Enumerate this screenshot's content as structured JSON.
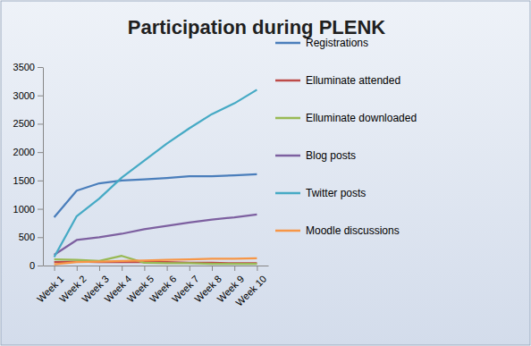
{
  "chart_data": {
    "type": "line",
    "title": "Participation during PLENK",
    "categories": [
      "Week 1",
      "Week 2",
      "Week 3",
      "Week 4",
      "Week 5",
      "Week 6",
      "Week 7",
      "Week 8",
      "Week 9",
      "Week 10"
    ],
    "ylim": [
      0,
      3500
    ],
    "yticks": [
      0,
      500,
      1000,
      1500,
      2000,
      2500,
      3000,
      3500
    ],
    "grid": false,
    "legend": "right",
    "series": [
      {
        "name": "Registrations",
        "color": "#4a7ebb",
        "values": [
          850,
          1320,
          1450,
          1500,
          1520,
          1545,
          1575,
          1575,
          1590,
          1610
        ]
      },
      {
        "name": "Elluminate attended",
        "color": "#be4b48",
        "values": [
          60,
          70,
          60,
          60,
          60,
          60,
          50,
          50,
          40,
          40
        ]
      },
      {
        "name": "Elluminate downloaded",
        "color": "#98b954",
        "values": [
          110,
          100,
          80,
          170,
          50,
          40,
          40,
          30,
          30,
          30
        ]
      },
      {
        "name": "Blog posts",
        "color": "#7d60a0",
        "values": [
          190,
          450,
          500,
          560,
          640,
          700,
          760,
          810,
          850,
          900
        ]
      },
      {
        "name": "Twitter posts",
        "color": "#46aac5",
        "values": [
          150,
          870,
          1180,
          1550,
          1850,
          2150,
          2420,
          2670,
          2860,
          3100
        ]
      },
      {
        "name": "Moodle discussions",
        "color": "#f79646",
        "values": [
          20,
          60,
          70,
          80,
          90,
          100,
          110,
          120,
          120,
          130
        ]
      }
    ]
  }
}
